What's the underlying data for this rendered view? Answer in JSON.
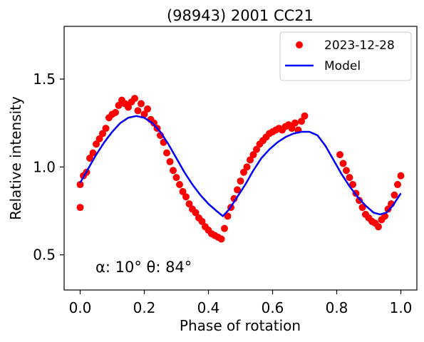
{
  "chart_data": {
    "type": "scatter",
    "title": "(98943) 2001 CC21",
    "xlabel": "Phase of rotation",
    "ylabel": "Relative intensity",
    "xlim": [
      -0.05,
      1.05
    ],
    "ylim": [
      0.3,
      1.8
    ],
    "xticks": [
      0.0,
      0.2,
      0.4,
      0.6,
      0.8,
      1.0
    ],
    "xtick_labels": [
      "0.0",
      "0.2",
      "0.4",
      "0.6",
      "0.8",
      "1.0"
    ],
    "yticks": [
      0.5,
      1.0,
      1.5
    ],
    "ytick_labels": [
      "0.5",
      "1.0",
      "1.5"
    ],
    "grid": false,
    "legend_position": "top-right",
    "annotation": "α: 10° θ: 84°",
    "series": [
      {
        "name": "2023-12-28",
        "kind": "scatter",
        "color": "#ff0000",
        "points": [
          [
            0.0,
            0.77
          ],
          [
            0.0,
            0.9
          ],
          [
            0.01,
            0.95
          ],
          [
            0.02,
            0.97
          ],
          [
            0.03,
            1.05
          ],
          [
            0.04,
            1.08
          ],
          [
            0.05,
            1.13
          ],
          [
            0.06,
            1.16
          ],
          [
            0.07,
            1.19
          ],
          [
            0.08,
            1.22
          ],
          [
            0.09,
            1.28
          ],
          [
            0.1,
            1.3
          ],
          [
            0.11,
            1.31
          ],
          [
            0.12,
            1.35
          ],
          [
            0.13,
            1.38
          ],
          [
            0.14,
            1.36
          ],
          [
            0.15,
            1.34
          ],
          [
            0.16,
            1.37
          ],
          [
            0.17,
            1.39
          ],
          [
            0.18,
            1.32
          ],
          [
            0.19,
            1.36
          ],
          [
            0.2,
            1.3
          ],
          [
            0.21,
            1.33
          ],
          [
            0.22,
            1.27
          ],
          [
            0.23,
            1.25
          ],
          [
            0.24,
            1.22
          ],
          [
            0.25,
            1.18
          ],
          [
            0.26,
            1.14
          ],
          [
            0.27,
            1.08
          ],
          [
            0.28,
            1.03
          ],
          [
            0.29,
            0.98
          ],
          [
            0.3,
            0.94
          ],
          [
            0.31,
            0.9
          ],
          [
            0.32,
            0.86
          ],
          [
            0.33,
            0.83
          ],
          [
            0.34,
            0.79
          ],
          [
            0.35,
            0.76
          ],
          [
            0.36,
            0.74
          ],
          [
            0.37,
            0.71
          ],
          [
            0.38,
            0.69
          ],
          [
            0.39,
            0.66
          ],
          [
            0.4,
            0.64
          ],
          [
            0.41,
            0.62
          ],
          [
            0.42,
            0.61
          ],
          [
            0.43,
            0.6
          ],
          [
            0.44,
            0.59
          ],
          [
            0.45,
            0.65
          ],
          [
            0.46,
            0.72
          ],
          [
            0.47,
            0.77
          ],
          [
            0.48,
            0.82
          ],
          [
            0.49,
            0.87
          ],
          [
            0.5,
            0.92
          ],
          [
            0.51,
            0.97
          ],
          [
            0.52,
            1.0
          ],
          [
            0.53,
            1.04
          ],
          [
            0.54,
            1.07
          ],
          [
            0.55,
            1.1
          ],
          [
            0.56,
            1.13
          ],
          [
            0.57,
            1.15
          ],
          [
            0.58,
            1.17
          ],
          [
            0.59,
            1.19
          ],
          [
            0.6,
            1.2
          ],
          [
            0.61,
            1.21
          ],
          [
            0.62,
            1.22
          ],
          [
            0.63,
            1.21
          ],
          [
            0.64,
            1.23
          ],
          [
            0.65,
            1.24
          ],
          [
            0.66,
            1.22
          ],
          [
            0.67,
            1.25
          ],
          [
            0.68,
            1.21
          ],
          [
            0.69,
            1.26
          ],
          [
            0.7,
            1.29
          ],
          [
            0.81,
            1.07
          ],
          [
            0.82,
            1.02
          ],
          [
            0.83,
            0.98
          ],
          [
            0.84,
            0.94
          ],
          [
            0.85,
            0.9
          ],
          [
            0.86,
            0.85
          ],
          [
            0.87,
            0.81
          ],
          [
            0.88,
            0.77
          ],
          [
            0.89,
            0.73
          ],
          [
            0.9,
            0.71
          ],
          [
            0.91,
            0.69
          ],
          [
            0.92,
            0.68
          ],
          [
            0.93,
            0.66
          ],
          [
            0.94,
            0.7
          ],
          [
            0.95,
            0.72
          ],
          [
            0.96,
            0.76
          ],
          [
            0.97,
            0.79
          ],
          [
            0.98,
            0.84
          ],
          [
            0.99,
            0.9
          ],
          [
            1.0,
            0.95
          ]
        ]
      },
      {
        "name": "Model",
        "kind": "line",
        "color": "#0000ff",
        "points": [
          [
            0.0,
            0.91
          ],
          [
            0.025,
            0.99
          ],
          [
            0.05,
            1.07
          ],
          [
            0.075,
            1.14
          ],
          [
            0.1,
            1.2
          ],
          [
            0.125,
            1.25
          ],
          [
            0.15,
            1.28
          ],
          [
            0.175,
            1.29
          ],
          [
            0.2,
            1.28
          ],
          [
            0.225,
            1.25
          ],
          [
            0.25,
            1.2
          ],
          [
            0.275,
            1.13
          ],
          [
            0.3,
            1.05
          ],
          [
            0.325,
            0.97
          ],
          [
            0.35,
            0.9
          ],
          [
            0.375,
            0.84
          ],
          [
            0.4,
            0.79
          ],
          [
            0.425,
            0.75
          ],
          [
            0.445,
            0.72
          ],
          [
            0.465,
            0.76
          ],
          [
            0.49,
            0.83
          ],
          [
            0.515,
            0.9
          ],
          [
            0.54,
            0.98
          ],
          [
            0.565,
            1.05
          ],
          [
            0.59,
            1.1
          ],
          [
            0.615,
            1.14
          ],
          [
            0.64,
            1.17
          ],
          [
            0.665,
            1.19
          ],
          [
            0.69,
            1.2
          ],
          [
            0.715,
            1.2
          ],
          [
            0.74,
            1.18
          ],
          [
            0.765,
            1.12
          ],
          [
            0.79,
            1.04
          ],
          [
            0.815,
            0.96
          ],
          [
            0.84,
            0.89
          ],
          [
            0.865,
            0.83
          ],
          [
            0.89,
            0.78
          ],
          [
            0.915,
            0.74
          ],
          [
            0.935,
            0.73
          ],
          [
            0.955,
            0.74
          ],
          [
            0.975,
            0.78
          ],
          [
            1.0,
            0.85
          ]
        ]
      }
    ]
  }
}
